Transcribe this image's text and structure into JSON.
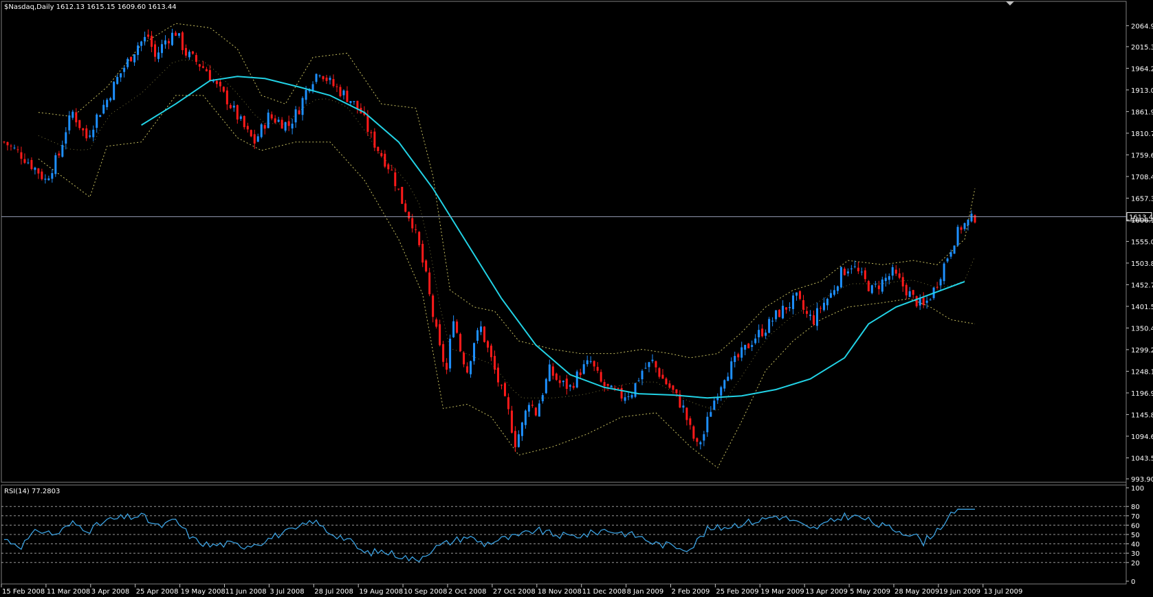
{
  "chart_header": {
    "symbol_line": "$Nasdaq,Daily  1612.13 1615.15 1609.60 1613.44"
  },
  "rsi_header": {
    "label": "RSI(14) 77.2803"
  },
  "colors": {
    "background": "#000000",
    "bull": "#1e90ff",
    "bear": "#ff1a1a",
    "ma": "#22d3e6",
    "bands": "#c8c060",
    "rsi": "#3aa0e0",
    "grid": "#c0c0c0",
    "text": "#ffffff"
  },
  "chart_data": [
    {
      "type": "candlestick",
      "title": "",
      "y_ticks": [
        "2064.95",
        "2015.35",
        "1964.20",
        "1913.05",
        "1861.90",
        "1810.75",
        "1759.60",
        "1708.45",
        "1657.30",
        "1606.15",
        "1555.00",
        "1503.85",
        "1452.70",
        "1401.55",
        "1350.40",
        "1299.25",
        "1248.10",
        "1196.95",
        "1145.80",
        "1094.65",
        "1043.50",
        "993.90"
      ],
      "ylim": [
        993.9,
        2085
      ],
      "last_price": "1613.44",
      "x_ticks": [
        "15 Feb 2008",
        "11 Mar 2008",
        "3 Apr 2008",
        "25 Apr 2008",
        "19 May 2008",
        "11 Jun 2008",
        "3 Jul 2008",
        "28 Jul 2008",
        "19 Aug 2008",
        "10 Sep 2008",
        "2 Oct 2008",
        "27 Oct 2008",
        "18 Nov 2008",
        "11 Dec 2008",
        "8 Jan 2009",
        "2 Feb 2009",
        "25 Feb 2009",
        "19 Mar 2009",
        "13 Apr 2009",
        "5 May 2009",
        "28 May 2009",
        "19 Jun 2009",
        "13 Jul 2009"
      ],
      "close_path": [
        [
          0,
          1790
        ],
        [
          5,
          1760
        ],
        [
          10,
          1720
        ],
        [
          12,
          1700
        ],
        [
          14,
          1730
        ],
        [
          16,
          1760
        ],
        [
          18,
          1820
        ],
        [
          20,
          1860
        ],
        [
          22,
          1830
        ],
        [
          24,
          1800
        ],
        [
          27,
          1850
        ],
        [
          30,
          1890
        ],
        [
          33,
          1940
        ],
        [
          36,
          1980
        ],
        [
          39,
          2020
        ],
        [
          42,
          2040
        ],
        [
          44,
          1990
        ],
        [
          47,
          2030
        ],
        [
          50,
          2050
        ],
        [
          53,
          2000
        ],
        [
          56,
          1980
        ],
        [
          59,
          1960
        ],
        [
          62,
          1920
        ],
        [
          65,
          1890
        ],
        [
          68,
          1850
        ],
        [
          71,
          1810
        ],
        [
          73,
          1790
        ],
        [
          75,
          1820
        ],
        [
          77,
          1850
        ],
        [
          80,
          1840
        ],
        [
          83,
          1830
        ],
        [
          86,
          1870
        ],
        [
          89,
          1930
        ],
        [
          92,
          1960
        ],
        [
          95,
          1930
        ],
        [
          98,
          1910
        ],
        [
          101,
          1890
        ],
        [
          104,
          1860
        ],
        [
          107,
          1800
        ],
        [
          110,
          1760
        ],
        [
          113,
          1720
        ],
        [
          116,
          1650
        ],
        [
          119,
          1600
        ],
        [
          121,
          1540
        ],
        [
          123,
          1470
        ],
        [
          125,
          1380
        ],
        [
          127,
          1300
        ],
        [
          129,
          1250
        ],
        [
          131,
          1380
        ],
        [
          133,
          1300
        ],
        [
          135,
          1250
        ],
        [
          137,
          1320
        ],
        [
          139,
          1350
        ],
        [
          141,
          1300
        ],
        [
          143,
          1250
        ],
        [
          145,
          1200
        ],
        [
          147,
          1150
        ],
        [
          149,
          1080
        ],
        [
          151,
          1120
        ],
        [
          153,
          1180
        ],
        [
          155,
          1150
        ],
        [
          157,
          1200
        ],
        [
          159,
          1250
        ],
        [
          162,
          1220
        ],
        [
          165,
          1210
        ],
        [
          168,
          1250
        ],
        [
          171,
          1270
        ],
        [
          174,
          1220
        ],
        [
          177,
          1200
        ],
        [
          180,
          1190
        ],
        [
          183,
          1200
        ],
        [
          186,
          1250
        ],
        [
          189,
          1270
        ],
        [
          192,
          1230
        ],
        [
          195,
          1200
        ],
        [
          198,
          1160
        ],
        [
          200,
          1110
        ],
        [
          202,
          1070
        ],
        [
          204,
          1100
        ],
        [
          206,
          1160
        ],
        [
          208,
          1200
        ],
        [
          210,
          1240
        ],
        [
          213,
          1270
        ],
        [
          216,
          1300
        ],
        [
          219,
          1330
        ],
        [
          222,
          1350
        ],
        [
          225,
          1380
        ],
        [
          228,
          1400
        ],
        [
          231,
          1420
        ],
        [
          234,
          1380
        ],
        [
          236,
          1370
        ],
        [
          238,
          1400
        ],
        [
          241,
          1430
        ],
        [
          244,
          1480
        ],
        [
          247,
          1500
        ],
        [
          250,
          1470
        ],
        [
          253,
          1440
        ],
        [
          256,
          1460
        ],
        [
          259,
          1480
        ],
        [
          262,
          1450
        ],
        [
          265,
          1420
        ],
        [
          268,
          1400
        ],
        [
          271,
          1440
        ],
        [
          274,
          1500
        ],
        [
          277,
          1560
        ],
        [
          279,
          1590
        ],
        [
          281,
          1600
        ],
        [
          283,
          1613
        ]
      ],
      "ma_path": [
        [
          40,
          1830
        ],
        [
          50,
          1880
        ],
        [
          60,
          1935
        ],
        [
          68,
          1945
        ],
        [
          76,
          1940
        ],
        [
          86,
          1920
        ],
        [
          95,
          1900
        ],
        [
          105,
          1860
        ],
        [
          115,
          1790
        ],
        [
          125,
          1680
        ],
        [
          135,
          1550
        ],
        [
          145,
          1420
        ],
        [
          155,
          1310
        ],
        [
          165,
          1240
        ],
        [
          175,
          1210
        ],
        [
          185,
          1195
        ],
        [
          195,
          1192
        ],
        [
          205,
          1185
        ],
        [
          215,
          1190
        ],
        [
          225,
          1205
        ],
        [
          235,
          1230
        ],
        [
          245,
          1280
        ],
        [
          252,
          1360
        ],
        [
          260,
          1400
        ],
        [
          270,
          1430
        ],
        [
          280,
          1460
        ]
      ],
      "upper_band_path": [
        [
          10,
          1860
        ],
        [
          20,
          1850
        ],
        [
          30,
          1920
        ],
        [
          40,
          2020
        ],
        [
          50,
          2070
        ],
        [
          60,
          2060
        ],
        [
          68,
          2010
        ],
        [
          75,
          1900
        ],
        [
          82,
          1880
        ],
        [
          90,
          1990
        ],
        [
          100,
          2000
        ],
        [
          110,
          1880
        ],
        [
          120,
          1870
        ],
        [
          125,
          1710
        ],
        [
          130,
          1440
        ],
        [
          137,
          1400
        ],
        [
          143,
          1390
        ],
        [
          150,
          1320
        ],
        [
          160,
          1300
        ],
        [
          168,
          1290
        ],
        [
          178,
          1290
        ],
        [
          186,
          1300
        ],
        [
          194,
          1290
        ],
        [
          200,
          1280
        ],
        [
          208,
          1290
        ],
        [
          215,
          1340
        ],
        [
          222,
          1400
        ],
        [
          230,
          1440
        ],
        [
          238,
          1460
        ],
        [
          246,
          1510
        ],
        [
          256,
          1500
        ],
        [
          265,
          1510
        ],
        [
          272,
          1500
        ],
        [
          280,
          1560
        ],
        [
          283,
          1680
        ]
      ],
      "lower_band_path": [
        [
          10,
          1750
        ],
        [
          20,
          1690
        ],
        [
          25,
          1660
        ],
        [
          30,
          1780
        ],
        [
          40,
          1790
        ],
        [
          50,
          1900
        ],
        [
          58,
          1900
        ],
        [
          68,
          1800
        ],
        [
          75,
          1770
        ],
        [
          85,
          1790
        ],
        [
          95,
          1790
        ],
        [
          105,
          1700
        ],
        [
          115,
          1560
        ],
        [
          122,
          1430
        ],
        [
          128,
          1160
        ],
        [
          135,
          1170
        ],
        [
          142,
          1140
        ],
        [
          150,
          1050
        ],
        [
          160,
          1070
        ],
        [
          170,
          1100
        ],
        [
          180,
          1140
        ],
        [
          190,
          1150
        ],
        [
          200,
          1070
        ],
        [
          208,
          1020
        ],
        [
          215,
          1130
        ],
        [
          222,
          1250
        ],
        [
          230,
          1320
        ],
        [
          238,
          1370
        ],
        [
          246,
          1400
        ],
        [
          256,
          1410
        ],
        [
          264,
          1420
        ],
        [
          270,
          1400
        ],
        [
          276,
          1370
        ],
        [
          283,
          1360
        ]
      ]
    },
    {
      "type": "line",
      "title": "RSI(14) 77.2803",
      "y_ticks": [
        "100",
        "80",
        "70",
        "60",
        "50",
        "40",
        "30",
        "20",
        "0"
      ],
      "ylim": [
        0,
        100
      ],
      "levels": [
        20,
        30,
        40,
        50,
        60,
        70,
        80
      ],
      "rsi_path": [
        [
          0,
          45
        ],
        [
          5,
          38
        ],
        [
          10,
          55
        ],
        [
          15,
          50
        ],
        [
          20,
          62
        ],
        [
          25,
          55
        ],
        [
          30,
          65
        ],
        [
          35,
          68
        ],
        [
          40,
          70
        ],
        [
          45,
          58
        ],
        [
          50,
          65
        ],
        [
          55,
          45
        ],
        [
          60,
          38
        ],
        [
          65,
          40
        ],
        [
          70,
          38
        ],
        [
          75,
          42
        ],
        [
          80,
          50
        ],
        [
          85,
          55
        ],
        [
          90,
          65
        ],
        [
          95,
          52
        ],
        [
          100,
          45
        ],
        [
          105,
          30
        ],
        [
          110,
          32
        ],
        [
          115,
          28
        ],
        [
          120,
          22
        ],
        [
          125,
          35
        ],
        [
          130,
          42
        ],
        [
          135,
          48
        ],
        [
          140,
          40
        ],
        [
          145,
          45
        ],
        [
          150,
          48
        ],
        [
          155,
          55
        ],
        [
          160,
          50
        ],
        [
          165,
          48
        ],
        [
          170,
          50
        ],
        [
          175,
          55
        ],
        [
          180,
          52
        ],
        [
          185,
          48
        ],
        [
          190,
          40
        ],
        [
          195,
          38
        ],
        [
          200,
          35
        ],
        [
          205,
          55
        ],
        [
          210,
          58
        ],
        [
          215,
          62
        ],
        [
          220,
          65
        ],
        [
          225,
          70
        ],
        [
          230,
          65
        ],
        [
          235,
          55
        ],
        [
          240,
          62
        ],
        [
          245,
          70
        ],
        [
          250,
          68
        ],
        [
          255,
          60
        ],
        [
          260,
          55
        ],
        [
          265,
          50
        ],
        [
          268,
          42
        ],
        [
          272,
          55
        ],
        [
          276,
          70
        ],
        [
          280,
          77
        ],
        [
          283,
          77
        ]
      ]
    }
  ]
}
